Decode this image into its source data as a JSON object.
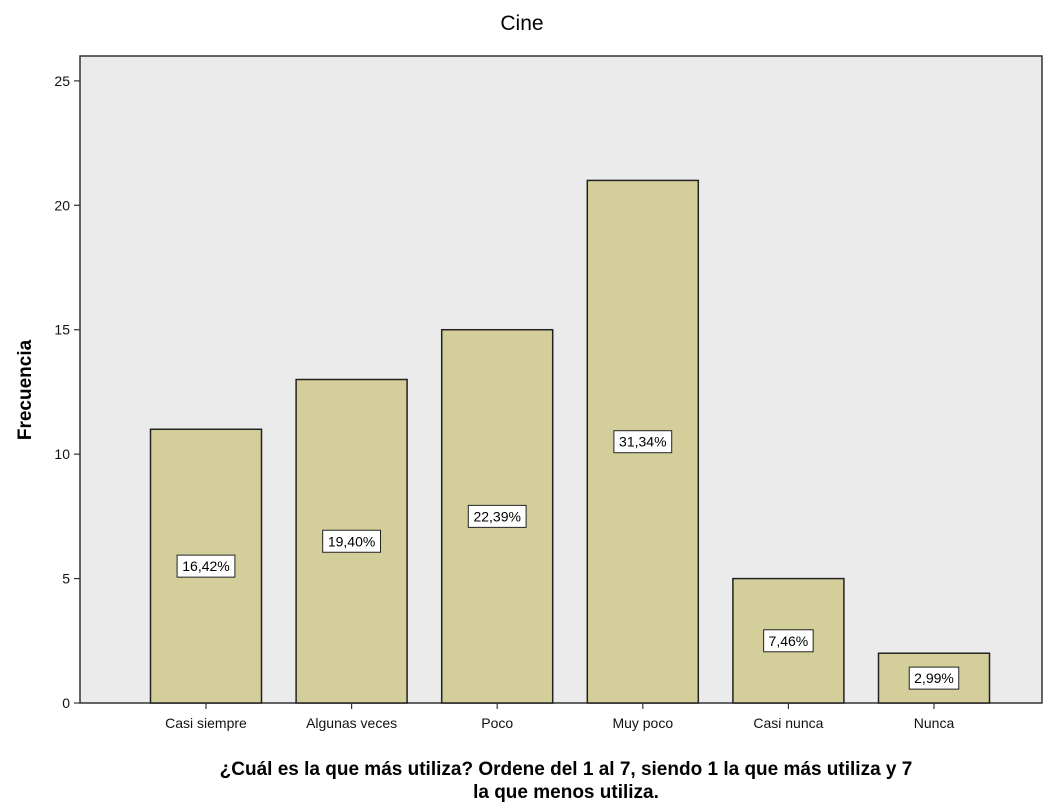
{
  "chart_data": {
    "type": "bar",
    "title": "Cine",
    "xlabel_lines": [
      "¿Cuál es la que más utiliza? Ordene del 1 al 7, siendo 1 la que más utiliza y 7",
      "la que menos utiliza."
    ],
    "ylabel": "Frecuencia",
    "categories": [
      "Casi siempre",
      "Algunas veces",
      "Poco",
      "Muy poco",
      "Casi nunca",
      "Nunca"
    ],
    "values": [
      11,
      13,
      15,
      21,
      5,
      2
    ],
    "data_labels": [
      "16,42%",
      "19,40%",
      "22,39%",
      "31,34%",
      "7,46%",
      "2,99%"
    ],
    "ylim": [
      0,
      26
    ],
    "yticks": [
      0,
      5,
      10,
      15,
      20,
      25
    ],
    "grid": false,
    "colors": {
      "plot_background": "#ebebeb",
      "bar_fill": "#d4ce9a",
      "bar_stroke": "#222222",
      "axis": "#333333"
    }
  }
}
